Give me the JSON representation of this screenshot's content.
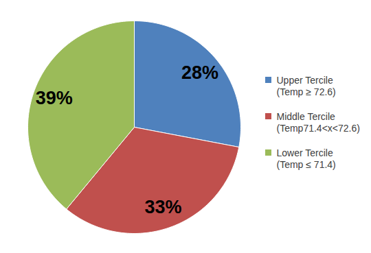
{
  "chart_data": {
    "type": "pie",
    "categories": [
      "Upper Tercile\n(Temp ≥ 72.6)",
      "Middle Tercile\n(Temp71.4<x<72.6)",
      "Lower Tercile\n(Temp ≤ 71.4)"
    ],
    "values": [
      28,
      33,
      39
    ],
    "value_labels": [
      "28%",
      "33%",
      "39%"
    ],
    "colors": [
      "#4f81bd",
      "#c0504d",
      "#9bbb59"
    ],
    "data_labels": true,
    "legend": "right"
  }
}
